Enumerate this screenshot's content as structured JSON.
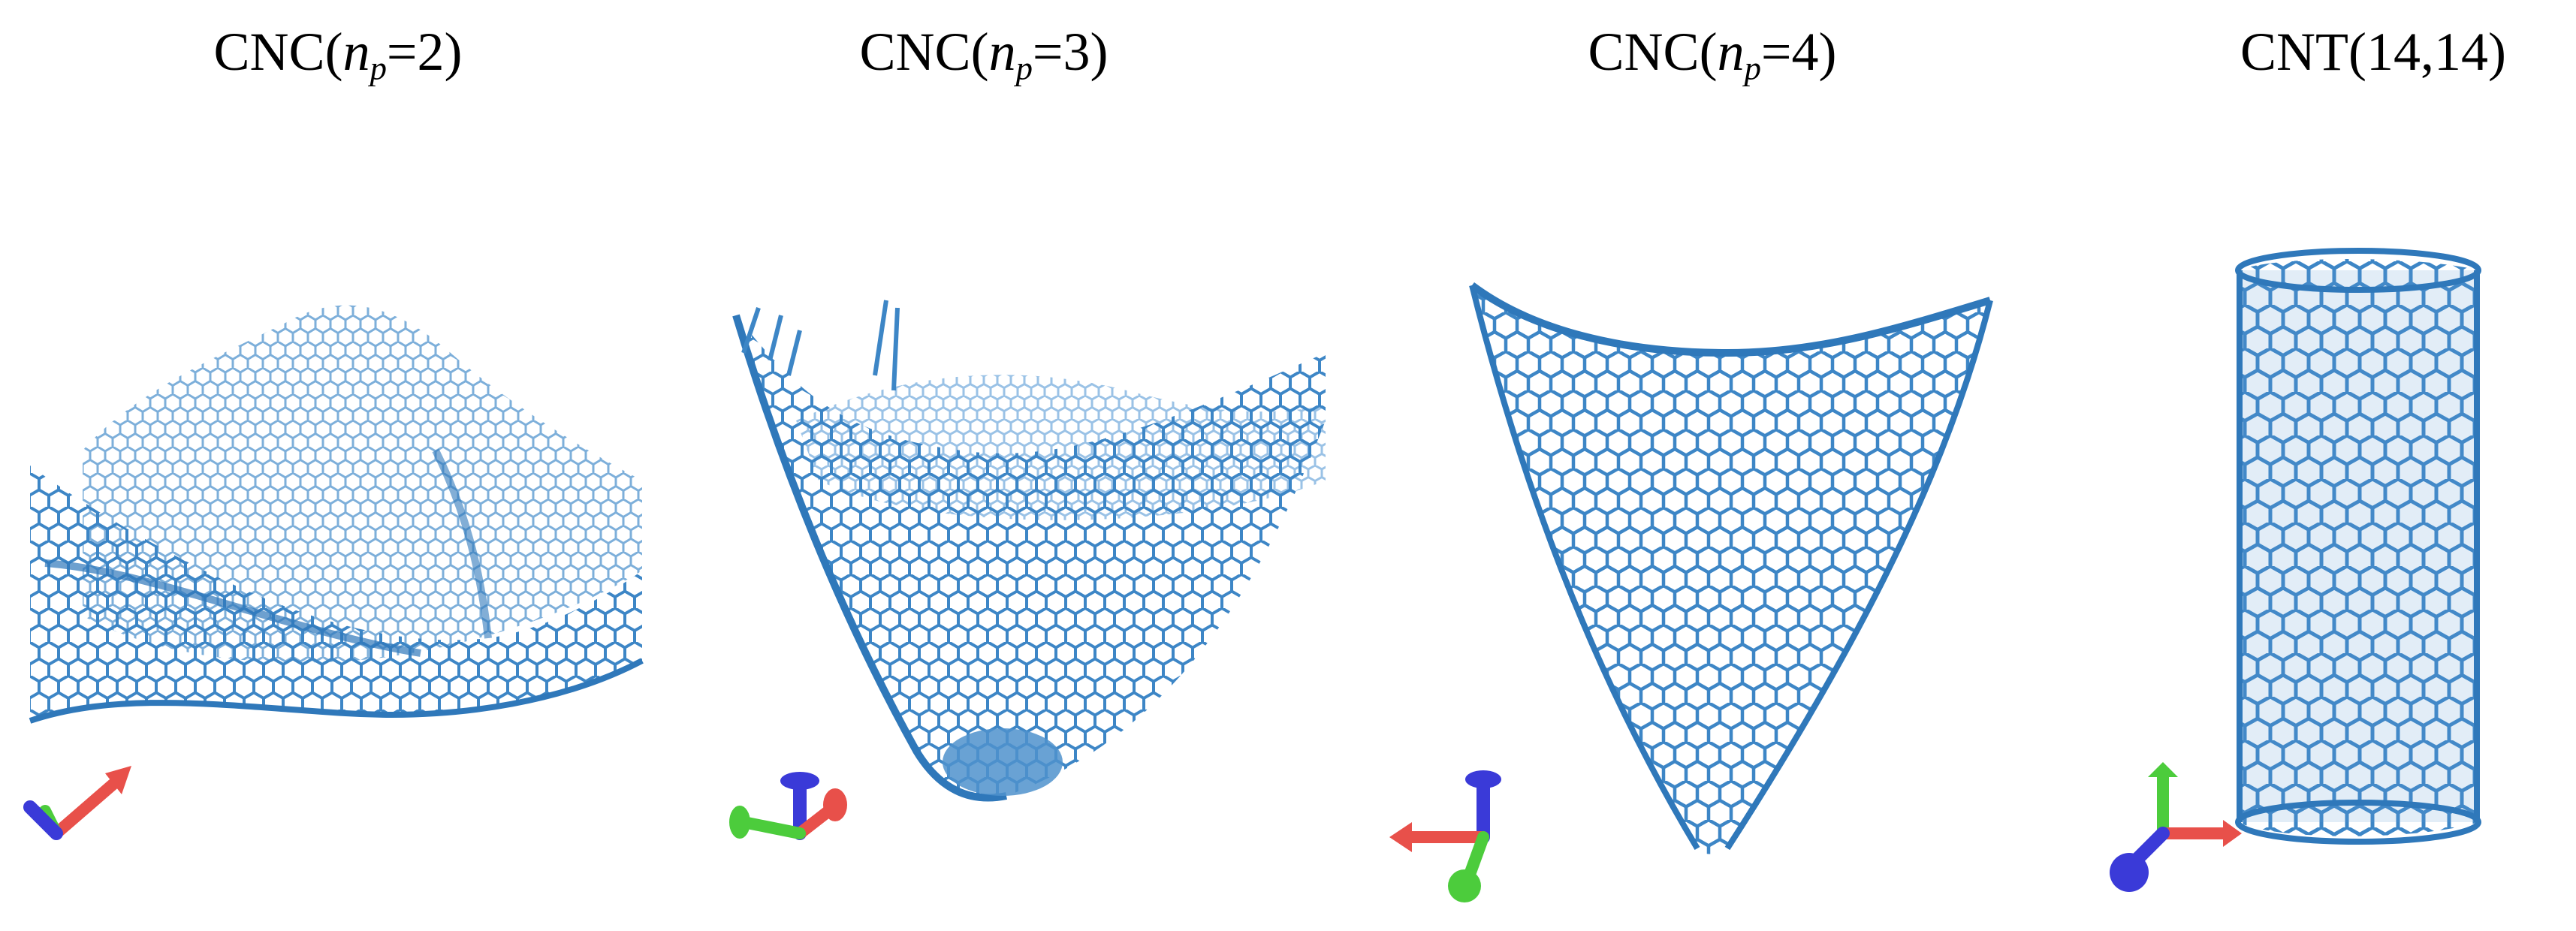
{
  "panels": [
    {
      "label_pre": "CNC(",
      "label_var": "n",
      "label_sub": "p",
      "label_post": "=2)"
    },
    {
      "label_pre": "CNC(",
      "label_var": "n",
      "label_sub": "p",
      "label_post": "=3)"
    },
    {
      "label_pre": "CNC(",
      "label_var": "n",
      "label_sub": "p",
      "label_post": "=4)"
    },
    {
      "label_pre": "CNT(14,14)",
      "label_var": "",
      "label_sub": "",
      "label_post": ""
    }
  ],
  "colors": {
    "lattice": "#3d86c6",
    "lattice_light": "#8ab8e0",
    "axis_x": "#e8504a",
    "axis_y": "#4ccc3c",
    "axis_z": "#3a3ad8"
  }
}
